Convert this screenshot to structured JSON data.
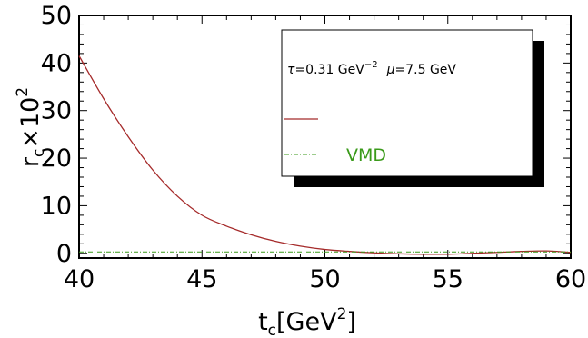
{
  "chart_data": {
    "type": "line",
    "x_label": {
      "main": "t",
      "sub": "c",
      "bracket_open": "[GeV",
      "sup": "2",
      "bracket_close": "]"
    },
    "y_label": {
      "main": "r",
      "sub": "c",
      "times": "×10",
      "sup": "2"
    },
    "xlim": [
      40,
      60
    ],
    "ylim": [
      -1,
      50
    ],
    "x_ticks": [
      {
        "value": 40,
        "label": "40"
      },
      {
        "value": 45,
        "label": "45"
      },
      {
        "value": 50,
        "label": "50"
      },
      {
        "value": 55,
        "label": "55"
      },
      {
        "value": 60,
        "label": "60"
      }
    ],
    "y_ticks": [
      {
        "value": 0,
        "label": "0"
      },
      {
        "value": 10,
        "label": "10"
      },
      {
        "value": 20,
        "label": "20"
      },
      {
        "value": 30,
        "label": "30"
      },
      {
        "value": 40,
        "label": "40"
      },
      {
        "value": 50,
        "label": "50"
      }
    ],
    "annotation": {
      "tau_symbol": "τ",
      "tau_value": "=0.31 GeV",
      "tau_exp": "−2",
      "mu_symbol": "μ",
      "mu_value": "=7.5 GeV"
    },
    "series": [
      {
        "name": "",
        "color": "#a52a2a",
        "style": "solid",
        "x": [
          40,
          41,
          42,
          43,
          44,
          45,
          46,
          47,
          48,
          49,
          50,
          51,
          52,
          53,
          54,
          55,
          56,
          57,
          58,
          59,
          60
        ],
        "y": [
          41.5,
          32.5,
          24.5,
          17.5,
          12.0,
          8.0,
          5.7,
          3.9,
          2.5,
          1.5,
          0.8,
          0.4,
          0.1,
          -0.1,
          -0.2,
          -0.2,
          0.0,
          0.2,
          0.4,
          0.5,
          0.2
        ]
      },
      {
        "name": "VMD",
        "color": "#3a9a1a",
        "style": "dashdot",
        "x": [
          40,
          60
        ],
        "y": [
          0.3,
          0.3
        ]
      }
    ]
  }
}
